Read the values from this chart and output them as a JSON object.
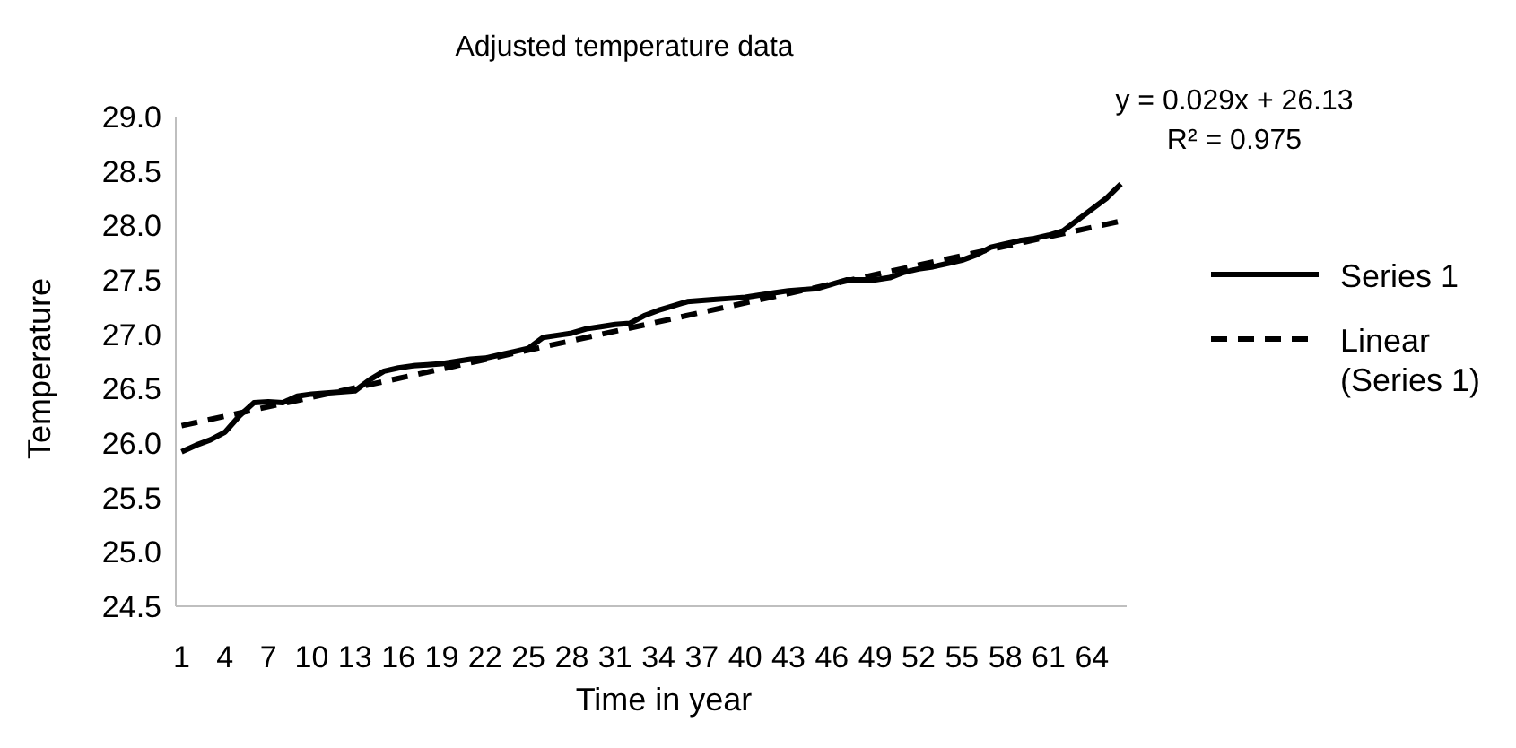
{
  "chart_data": {
    "type": "line",
    "title": "Adjusted temperature data",
    "xlabel": "Time in year",
    "ylabel": "Temperature",
    "annotations": [
      "y = 0.029x + 26.13",
      "R² = 0.975"
    ],
    "x": [
      1,
      2,
      3,
      4,
      5,
      6,
      7,
      8,
      9,
      10,
      11,
      12,
      13,
      14,
      15,
      16,
      17,
      18,
      19,
      20,
      21,
      22,
      23,
      24,
      25,
      26,
      27,
      28,
      29,
      30,
      31,
      32,
      33,
      34,
      35,
      36,
      37,
      38,
      39,
      40,
      41,
      42,
      43,
      44,
      45,
      46,
      47,
      48,
      49,
      50,
      51,
      52,
      53,
      54,
      55,
      56,
      57,
      58,
      59,
      60,
      61,
      62,
      63,
      64,
      65,
      66
    ],
    "series": [
      {
        "name": "Series 1",
        "color": "#000000",
        "line_style": "solid",
        "values": [
          25.92,
          25.98,
          26.03,
          26.1,
          26.25,
          26.37,
          26.38,
          26.37,
          26.43,
          26.45,
          26.46,
          26.47,
          26.48,
          26.58,
          26.66,
          26.69,
          26.71,
          26.72,
          26.73,
          26.75,
          26.77,
          26.78,
          26.81,
          26.84,
          26.87,
          26.97,
          26.99,
          27.01,
          27.05,
          27.07,
          27.09,
          27.1,
          27.17,
          27.22,
          27.26,
          27.3,
          27.31,
          27.32,
          27.33,
          27.34,
          27.36,
          27.38,
          27.4,
          27.41,
          27.42,
          27.46,
          27.5,
          27.5,
          27.5,
          27.52,
          27.57,
          27.6,
          27.62,
          27.65,
          27.68,
          27.73,
          27.8,
          27.83,
          27.86,
          27.88,
          27.91,
          27.95,
          28.05,
          28.15,
          28.25,
          28.38
        ]
      },
      {
        "name": "Linear (Series 1)",
        "type": "line",
        "color": "#000000",
        "line_style": "dashed",
        "x": [
          1,
          66
        ],
        "values": [
          26.16,
          28.04
        ]
      }
    ],
    "xlim": [
      0.6,
      66.4
    ],
    "xticks": [
      1,
      4,
      7,
      10,
      13,
      16,
      19,
      22,
      25,
      28,
      31,
      34,
      37,
      40,
      43,
      46,
      49,
      52,
      55,
      58,
      61,
      64
    ],
    "ylim": [
      24.5,
      29
    ],
    "yticks": [
      {
        "value": 24.5,
        "label": "24.5"
      },
      {
        "value": 25,
        "label": "25.0"
      },
      {
        "value": 25.5,
        "label": "25.5"
      },
      {
        "value": 26,
        "label": "26.0"
      },
      {
        "value": 26.5,
        "label": "26.5"
      },
      {
        "value": 27,
        "label": "27.0"
      },
      {
        "value": 27.5,
        "label": "27.5"
      },
      {
        "value": 28,
        "label": "28.0"
      },
      {
        "value": 28.5,
        "label": "28.5"
      },
      {
        "value": 29,
        "label": "29.0"
      }
    ],
    "legend": "right",
    "marker": "none"
  }
}
